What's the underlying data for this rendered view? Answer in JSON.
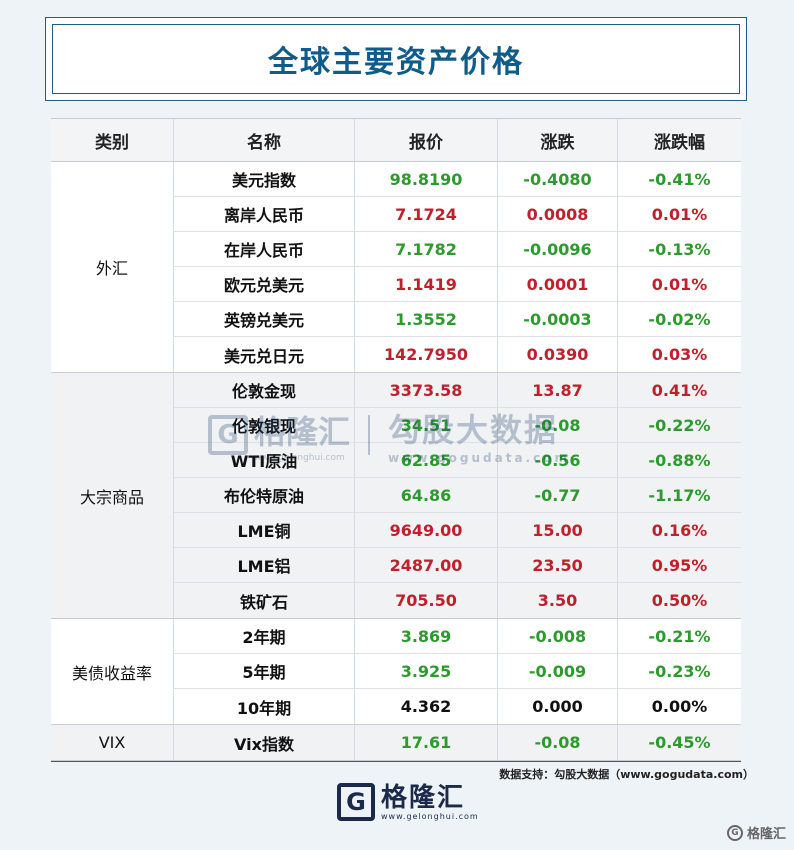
{
  "title": "全球主要资产价格",
  "headers": [
    "类别",
    "名称",
    "报价",
    "涨跌",
    "涨跌幅"
  ],
  "groups": [
    {
      "category": "外汇",
      "rows": [
        {
          "name": "美元指数",
          "price": "98.8190",
          "change": "-0.4080",
          "pct": "-0.41%"
        },
        {
          "name": "离岸人民币",
          "price": "7.1724",
          "change": "0.0008",
          "pct": "0.01%"
        },
        {
          "name": "在岸人民币",
          "price": "7.1782",
          "change": "-0.0096",
          "pct": "-0.13%"
        },
        {
          "name": "欧元兑美元",
          "price": "1.1419",
          "change": "0.0001",
          "pct": "0.01%"
        },
        {
          "name": "英镑兑美元",
          "price": "1.3552",
          "change": "-0.0003",
          "pct": "-0.02%"
        },
        {
          "name": "美元兑日元",
          "price": "142.7950",
          "change": "0.0390",
          "pct": "0.03%"
        }
      ]
    },
    {
      "category": "大宗商品",
      "rows": [
        {
          "name": "伦敦金现",
          "price": "3373.58",
          "change": "13.87",
          "pct": "0.41%"
        },
        {
          "name": "伦敦银现",
          "price": "34.51",
          "change": "-0.08",
          "pct": "-0.22%"
        },
        {
          "name": "WTI原油",
          "price": "62.85",
          "change": "-0.56",
          "pct": "-0.88%"
        },
        {
          "name": "布伦特原油",
          "price": "64.86",
          "change": "-0.77",
          "pct": "-1.17%"
        },
        {
          "name": "LME铜",
          "price": "9649.00",
          "change": "15.00",
          "pct": "0.16%"
        },
        {
          "name": "LME铝",
          "price": "2487.00",
          "change": "23.50",
          "pct": "0.95%"
        },
        {
          "name": "铁矿石",
          "price": "705.50",
          "change": "3.50",
          "pct": "0.50%"
        }
      ]
    },
    {
      "category": "美债收益率",
      "rows": [
        {
          "name": "2年期",
          "price": "3.869",
          "change": "-0.008",
          "pct": "-0.21%"
        },
        {
          "name": "5年期",
          "price": "3.925",
          "change": "-0.009",
          "pct": "-0.23%"
        },
        {
          "name": "10年期",
          "price": "4.362",
          "change": "0.000",
          "pct": "0.00%"
        }
      ]
    },
    {
      "category": "VIX",
      "rows": [
        {
          "name": "Vix指数",
          "price": "17.61",
          "change": "-0.08",
          "pct": "-0.45%"
        }
      ]
    }
  ],
  "colors": {
    "up": "#c0202b",
    "down": "#2d9a2d",
    "flat": "#111111",
    "title": "#0f5b8a"
  },
  "watermark": {
    "brand": "格隆汇",
    "brand_url": "www.gelonghui.com",
    "partner": "勾股大数据",
    "partner_url": "www.gogudata.com"
  },
  "source": "数据支持：勾股大数据（www.gogudata.com）",
  "footer": {
    "brand": "格隆汇",
    "url": "www.gelonghui.com",
    "logo_letter": "G"
  },
  "corner": {
    "text": "格隆汇"
  }
}
